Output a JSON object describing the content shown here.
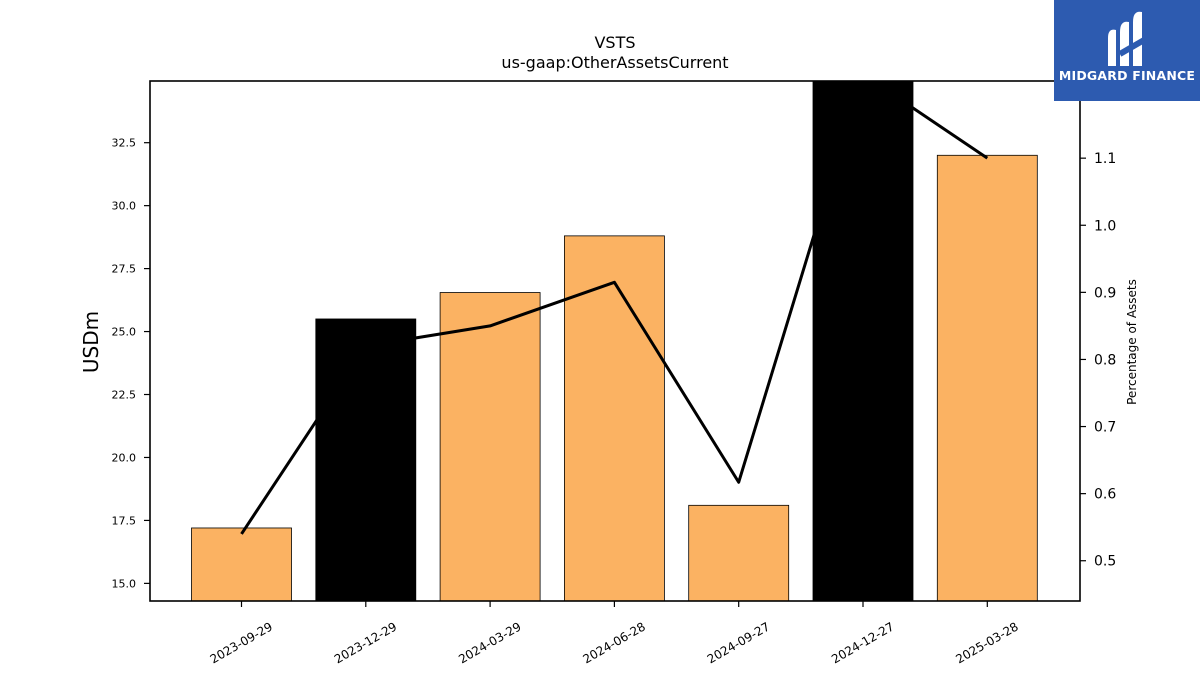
{
  "chart_data": {
    "type": "bar",
    "title": "VSTS",
    "subtitle": "us-gaap:OtherAssetsCurrent",
    "ylabel": "USDm",
    "y2label": "Percentage of Assets",
    "categories": [
      "2023-09-29",
      "2023-12-29",
      "2024-03-29",
      "2024-06-28",
      "2024-09-27",
      "2024-12-27",
      "2025-03-28"
    ],
    "values": [
      17.2,
      25.5,
      26.55,
      28.8,
      18.1,
      36.0,
      32.0
    ],
    "bar_colors": [
      "#fbb262",
      "#000000",
      "#fbb262",
      "#fbb262",
      "#fbb262",
      "#000000",
      "#fbb262"
    ],
    "line_series": {
      "name": "Percentage of Assets",
      "values": [
        0.54,
        0.82,
        0.85,
        0.915,
        0.617,
        1.225,
        1.1
      ],
      "color": "#000000"
    },
    "ylim": [
      14.3,
      34.95
    ],
    "y_ticks": [
      "15.0",
      "17.5",
      "20.0",
      "22.5",
      "25.0",
      "27.5",
      "30.0",
      "32.5"
    ],
    "y2lim": [
      0.44,
      1.215
    ],
    "y2_ticks": [
      "0.5",
      "0.6",
      "0.7",
      "0.8",
      "0.9",
      "1.0",
      "1.1"
    ],
    "grid": false
  },
  "logo": {
    "text": "MIDGARD FINANCE",
    "bg_color": "#2d5bb0"
  }
}
